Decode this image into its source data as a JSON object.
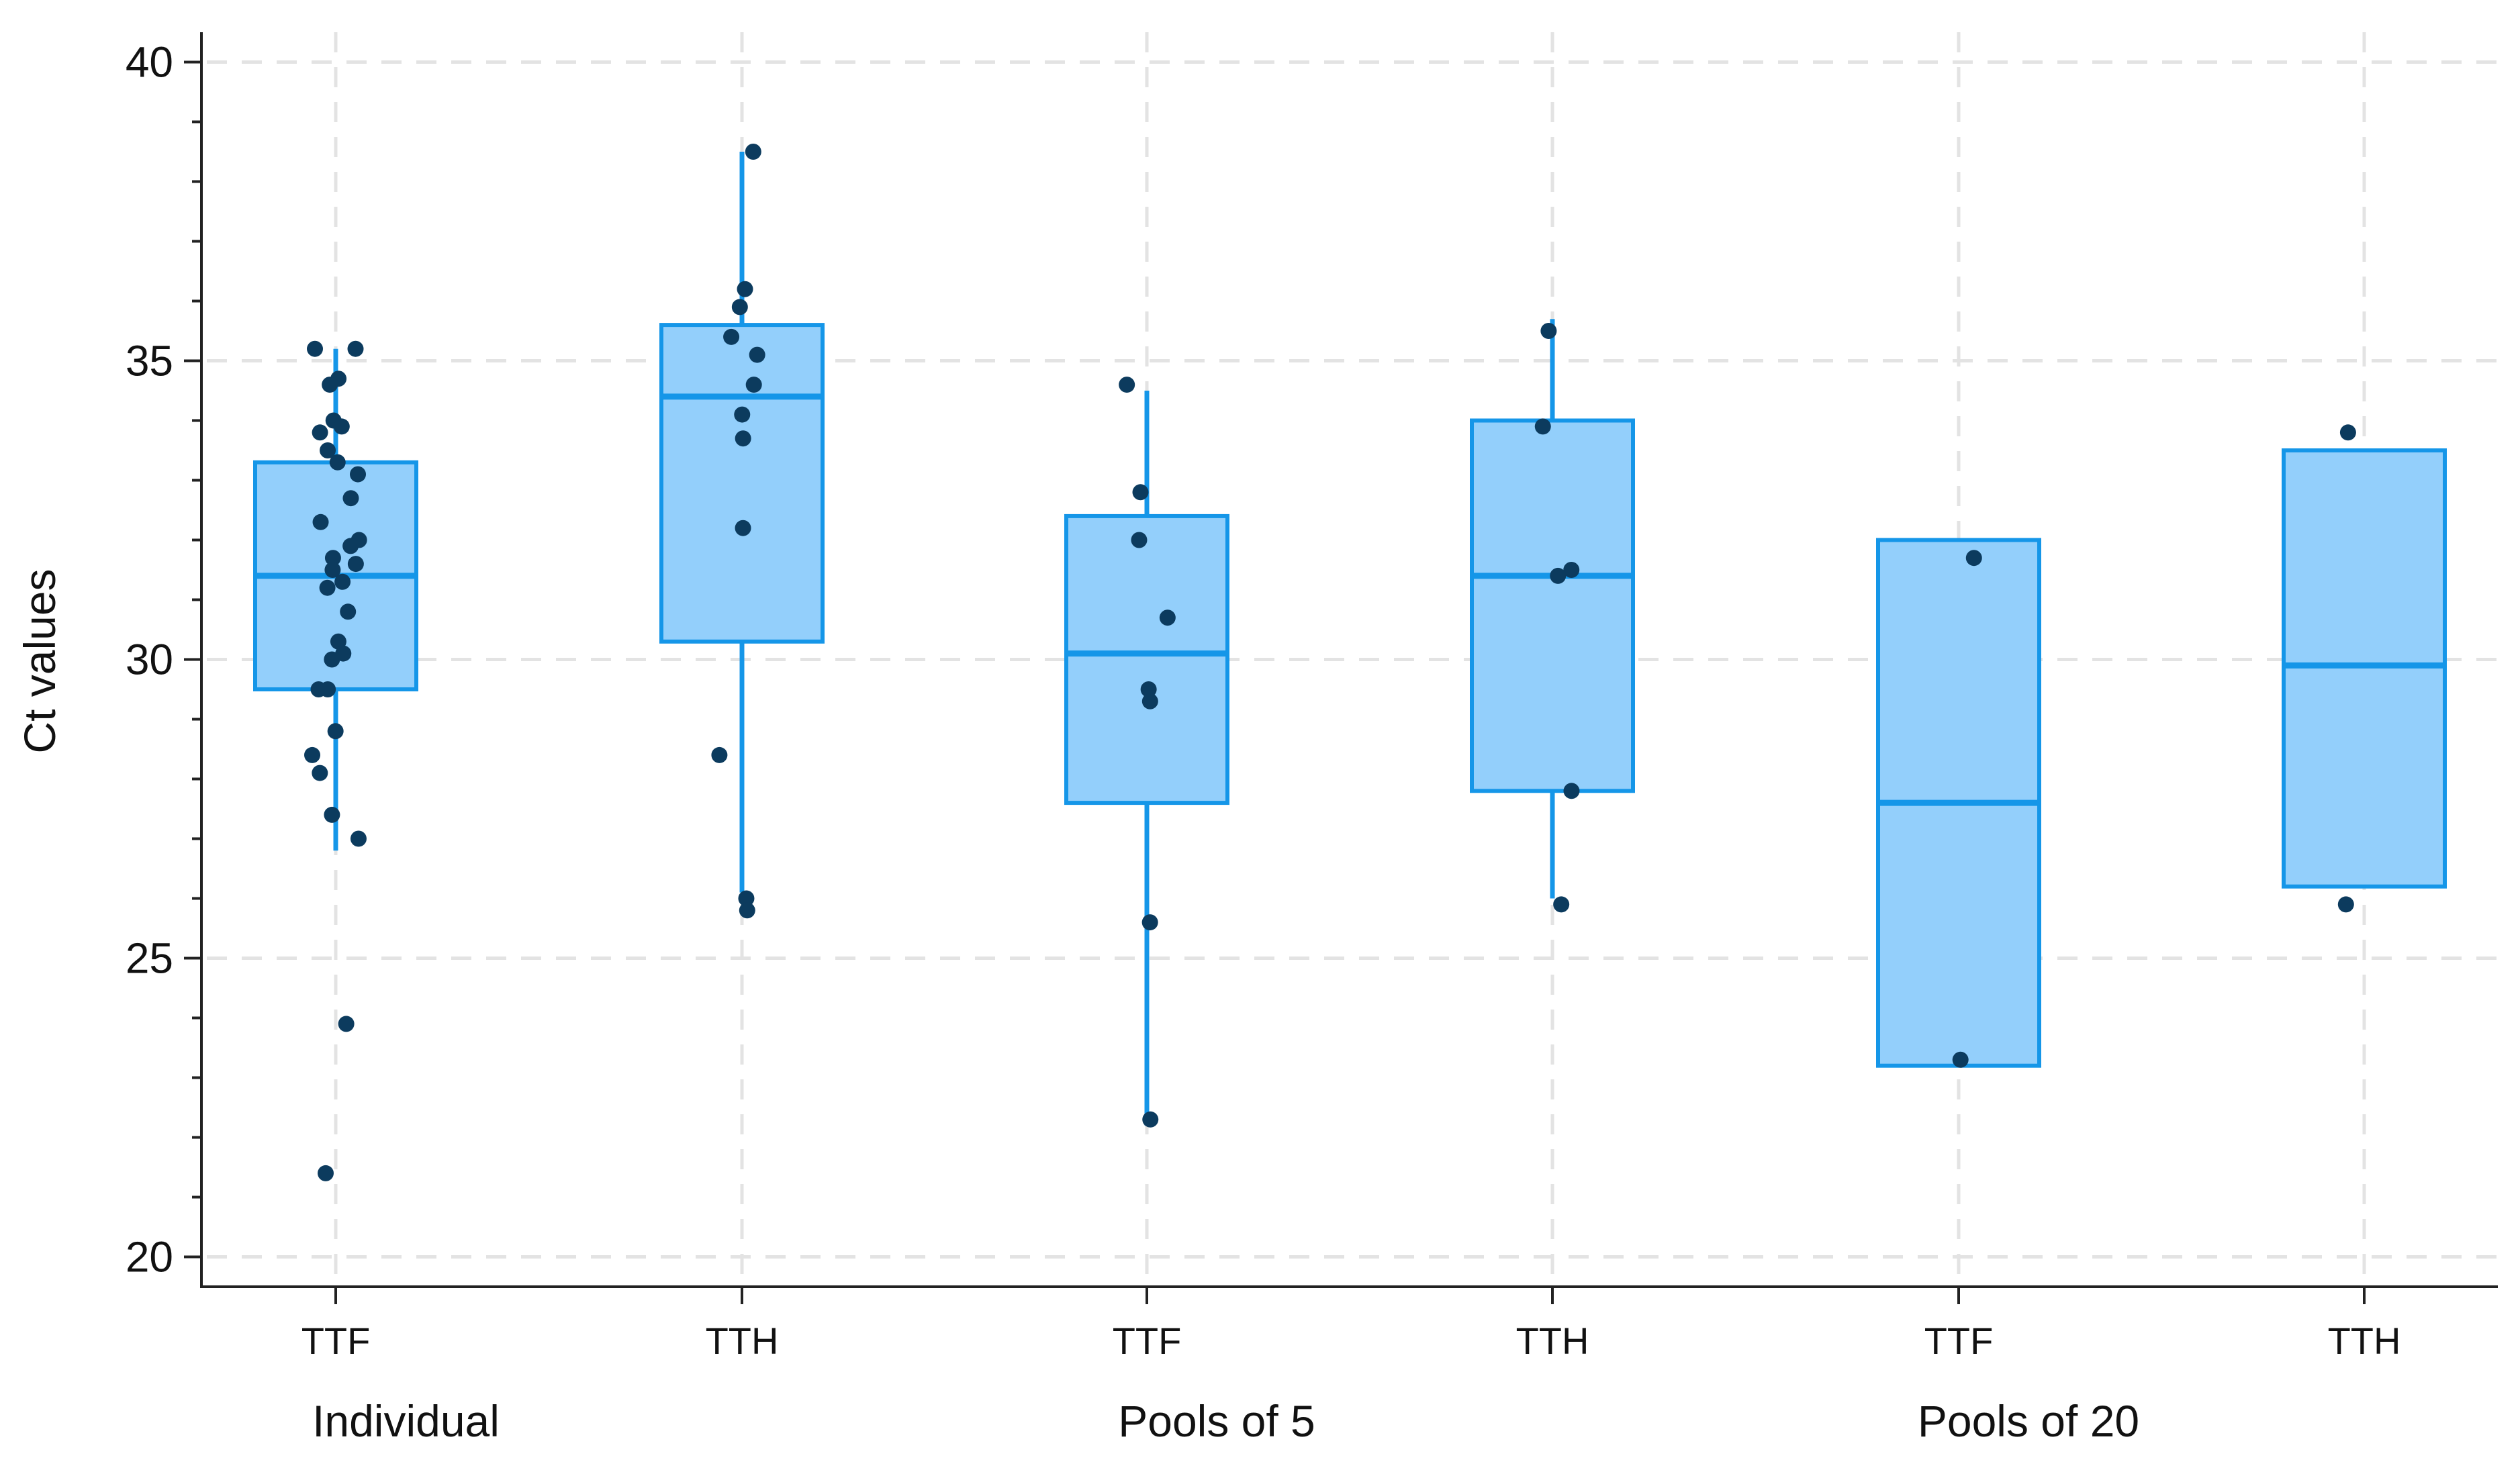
{
  "chart_data": {
    "type": "box",
    "title": "",
    "xlabel": "",
    "ylabel": "Ct values",
    "ylim": [
      19.5,
      40.5
    ],
    "yticks": [
      20,
      25,
      30,
      35,
      40
    ],
    "grid": true,
    "categories": [
      "TTF",
      "TTH",
      "TTF",
      "TTH",
      "TTF",
      "TTH"
    ],
    "groups": [
      {
        "label": "Individual",
        "categories": [
          0,
          1
        ]
      },
      {
        "label": "Pools of 5",
        "categories": [
          2,
          3
        ]
      },
      {
        "label": "Pools of 20",
        "categories": [
          4,
          5
        ]
      }
    ],
    "boxes": [
      {
        "group": "Individual",
        "category": "TTF",
        "q1": 29.5,
        "median": 31.4,
        "q3": 33.3,
        "whisker_low": 26.8,
        "whisker_high": 35.2,
        "points": [
          35.2,
          35.2,
          34.7,
          34.6,
          34.0,
          33.9,
          33.8,
          33.5,
          33.3,
          33.1,
          32.7,
          32.3,
          32.0,
          31.9,
          31.7,
          31.6,
          31.5,
          31.3,
          31.2,
          30.8,
          30.3,
          30.1,
          30.0,
          29.5,
          29.5,
          28.8,
          28.4,
          28.1,
          27.4,
          27.0,
          23.9,
          21.4
        ]
      },
      {
        "group": "Individual",
        "category": "TTH",
        "q1": 30.3,
        "median": 34.4,
        "q3": 35.6,
        "whisker_low": 26.1,
        "whisker_high": 38.5,
        "points": [
          38.5,
          36.2,
          35.9,
          35.4,
          35.1,
          34.6,
          34.1,
          33.7,
          32.2,
          28.4,
          26.0,
          25.8
        ]
      },
      {
        "group": "Pools of 5",
        "category": "TTF",
        "q1": 27.6,
        "median": 30.1,
        "q3": 32.4,
        "whisker_low": 22.2,
        "whisker_high": 34.5,
        "points": [
          34.6,
          32.8,
          32.0,
          30.7,
          29.5,
          29.3,
          25.6,
          22.3
        ]
      },
      {
        "group": "Pools of 5",
        "category": "TTH",
        "q1": 27.8,
        "median": 31.4,
        "q3": 34.0,
        "whisker_low": 26.0,
        "whisker_high": 35.7,
        "points": [
          35.5,
          33.9,
          31.5,
          31.4,
          27.8,
          25.9
        ]
      },
      {
        "group": "Pools of 20",
        "category": "TTF",
        "q1": 23.2,
        "median": 27.6,
        "q3": 32.0,
        "whisker_low": 23.2,
        "whisker_high": 32.0,
        "points": [
          31.7,
          23.3
        ]
      },
      {
        "group": "Pools of 20",
        "category": "TTH",
        "q1": 26.2,
        "median": 29.9,
        "q3": 33.5,
        "whisker_low": 26.2,
        "whisker_high": 33.5,
        "points": [
          33.8,
          25.9
        ]
      }
    ]
  }
}
